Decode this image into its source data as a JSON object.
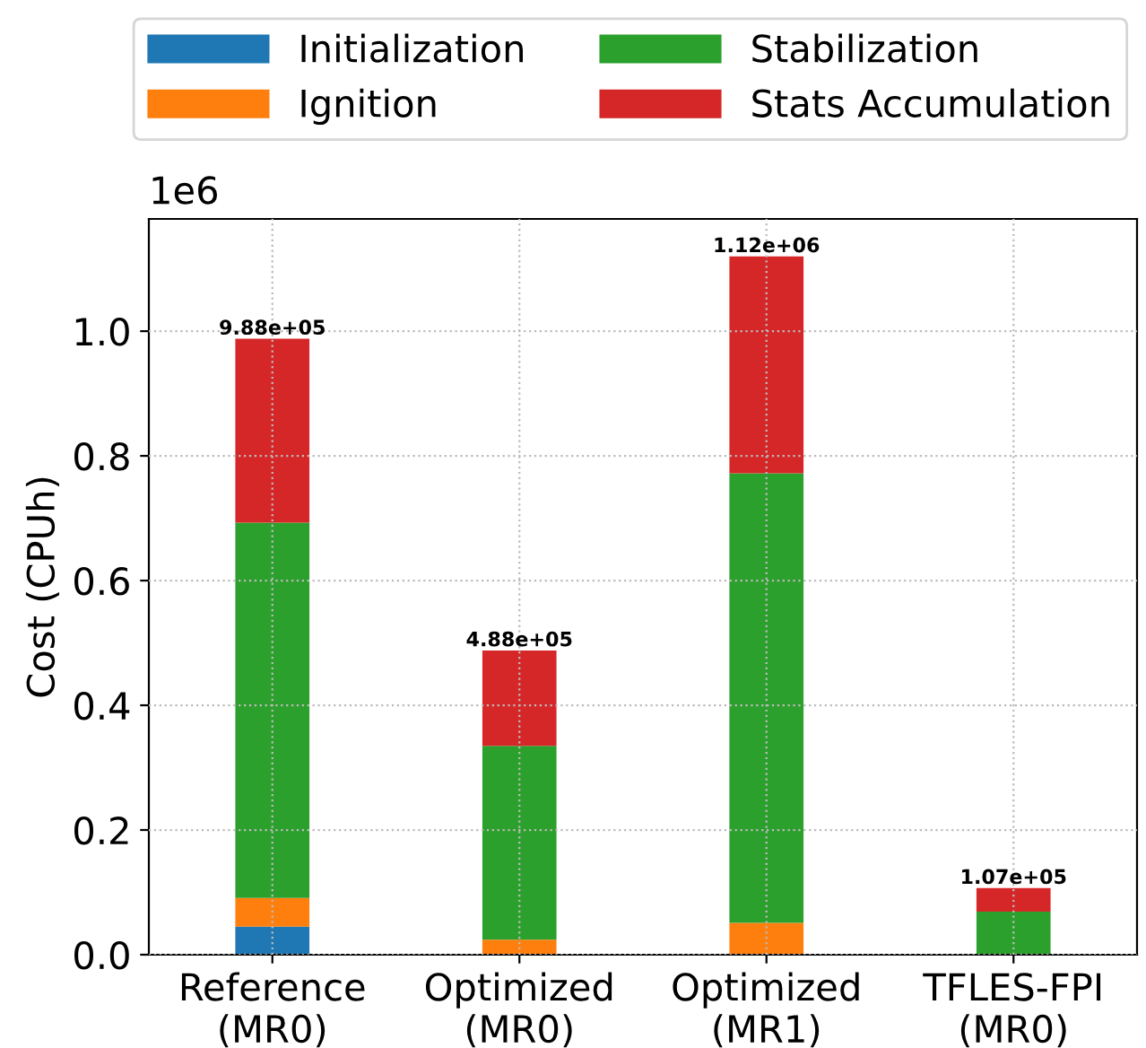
{
  "chart_data": {
    "type": "bar",
    "stacked": true,
    "ylabel": "Cost (CPUh)",
    "categories": [
      "Reference\n(MR0)",
      "Optimized\n(MR0)",
      "Optimized\n(MR1)",
      "TFLES-FPI\n(MR0)"
    ],
    "series": [
      {
        "name": "Initialization",
        "color": "#1f77b4",
        "values": [
          0.045,
          0,
          0,
          0
        ]
      },
      {
        "name": "Ignition",
        "color": "#ff7f0e",
        "values": [
          0.046,
          0.024,
          0.051,
          0
        ]
      },
      {
        "name": "Stabilization",
        "color": "#2ca02c",
        "values": [
          0.602,
          0.311,
          0.721,
          0.069
        ]
      },
      {
        "name": "Stats Accumulation",
        "color": "#d62728",
        "values": [
          0.295,
          0.153,
          0.348,
          0.038
        ]
      }
    ],
    "totals": [
      "9.88e+05",
      "4.88e+05",
      "1.12e+06",
      "1.07e+05"
    ],
    "ylim": [
      0.0,
      1.18
    ],
    "yticks": [
      {
        "value": 0,
        "label": "0.0"
      },
      0.2,
      0.4,
      0.6,
      0.8,
      {
        "value": 1,
        "label": "1.0"
      }
    ],
    "annotations": [
      "1e6"
    ],
    "grid": true,
    "legend": "top"
  }
}
